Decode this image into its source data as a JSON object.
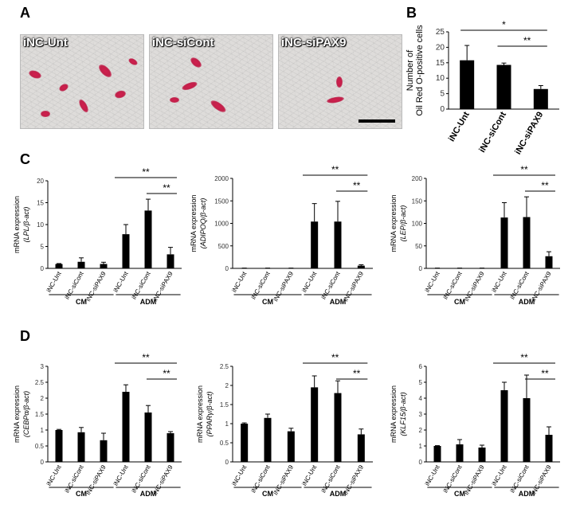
{
  "panel_labels": [
    "A",
    "B",
    "C",
    "D"
  ],
  "micrographs": [
    {
      "label": "iNC-Unt"
    },
    {
      "label": "iNC-siCont"
    },
    {
      "label": "iNC-siPAX9"
    }
  ],
  "chart_data": [
    {
      "id": "B",
      "type": "bar",
      "categories": [
        "iNC-Unt",
        "iNC-siCont",
        "iNC-siPAX9"
      ],
      "values": [
        15.8,
        14.3,
        6.5
      ],
      "errors": [
        4.8,
        0.6,
        1.1
      ],
      "ylabel_lines": [
        "Number of",
        "Oil Red O-positive cells"
      ],
      "ylim": [
        0,
        25
      ],
      "yticks": [
        0,
        5,
        10,
        15,
        20,
        25
      ],
      "ytick_labels": [
        "0",
        "5",
        "10",
        "15",
        "20",
        "25"
      ],
      "sig": [
        {
          "label": "*",
          "from": 0,
          "to": 2
        },
        {
          "label": "**",
          "from": 1,
          "to": 2
        }
      ],
      "groups": []
    },
    {
      "id": "C1",
      "type": "bar",
      "categories": [
        "iNC-Unt",
        "iNC-siCont",
        "iNC-siPAX9",
        "iNC-Unt",
        "iNC-siCont",
        "iNC-siPAX9"
      ],
      "values": [
        1.0,
        1.5,
        1.0,
        7.8,
        13.2,
        3.2
      ],
      "errors": [
        0.1,
        0.9,
        0.4,
        2.2,
        2.6,
        1.6
      ],
      "ylabel_lines": [
        "mRNA expression",
        "(LPL/β-act)"
      ],
      "ylim": [
        0,
        20
      ],
      "yticks": [
        0,
        5,
        10,
        15,
        20
      ],
      "ytick_labels": [
        "0",
        "5",
        "10",
        "15",
        "20"
      ],
      "sig": [
        {
          "label": "**",
          "from": 3,
          "to": 5
        },
        {
          "label": "**",
          "from": 4,
          "to": 5
        }
      ],
      "groups": [
        {
          "label": "CM",
          "from": 0,
          "to": 2
        },
        {
          "label": "ADM",
          "from": 3,
          "to": 5
        }
      ]
    },
    {
      "id": "C2",
      "type": "bar",
      "categories": [
        "iNC-Unt",
        "iNC-siCont",
        "iNC-siPAX9",
        "iNC-Unt",
        "iNC-siCont",
        "iNC-siPAX9"
      ],
      "values": [
        5,
        5,
        5,
        1040,
        1040,
        60
      ],
      "errors": [
        2,
        2,
        2,
        400,
        450,
        20
      ],
      "ylabel_lines": [
        "mRNA expression",
        "(ADIPOQ/β-act)"
      ],
      "ylim": [
        0,
        2000
      ],
      "yticks": [
        0,
        500,
        1000,
        1500,
        2000
      ],
      "ytick_labels": [
        "0",
        "500",
        "1000",
        "1500",
        "2000"
      ],
      "sig": [
        {
          "label": "**",
          "from": 3,
          "to": 5
        },
        {
          "label": "**",
          "from": 4,
          "to": 5
        }
      ],
      "groups": [
        {
          "label": "CM",
          "from": 0,
          "to": 2
        },
        {
          "label": "ADM",
          "from": 3,
          "to": 5
        }
      ]
    },
    {
      "id": "C3",
      "type": "bar",
      "categories": [
        "iNC-Unt",
        "iNC-siCont",
        "iNC-siPAX9",
        "iNC-Unt",
        "iNC-siCont",
        "iNC-siPAX9"
      ],
      "values": [
        0.5,
        0.5,
        0.5,
        113,
        114,
        27
      ],
      "errors": [
        0.2,
        0.2,
        0.2,
        33,
        45,
        10
      ],
      "ylabel_lines": [
        "mRNA expression",
        "(LEP/β-act)"
      ],
      "ylim": [
        0,
        200
      ],
      "yticks": [
        0,
        50,
        100,
        150,
        200
      ],
      "ytick_labels": [
        "0",
        "50",
        "100",
        "150",
        "200"
      ],
      "sig": [
        {
          "label": "**",
          "from": 3,
          "to": 5
        },
        {
          "label": "**",
          "from": 4,
          "to": 5
        }
      ],
      "groups": [
        {
          "label": "CM",
          "from": 0,
          "to": 2
        },
        {
          "label": "ADM",
          "from": 3,
          "to": 5
        }
      ]
    },
    {
      "id": "D1",
      "type": "bar",
      "categories": [
        "iNC-Unt",
        "iNC-siCont",
        "iNC-siPAX9",
        "iNC-Unt",
        "iNC-siCont",
        "iNC-siPAX9"
      ],
      "values": [
        1.0,
        0.93,
        0.68,
        2.2,
        1.55,
        0.9
      ],
      "errors": [
        0.02,
        0.15,
        0.22,
        0.22,
        0.22,
        0.05
      ],
      "ylabel_lines": [
        "mRNA expression",
        "(CEBPα/β-act)"
      ],
      "ylim": [
        0,
        3
      ],
      "yticks": [
        0,
        0.5,
        1,
        1.5,
        2,
        2.5,
        3
      ],
      "ytick_labels": [
        "0",
        "0.5",
        "1",
        "1.5",
        "2",
        "2.5",
        "3"
      ],
      "sig": [
        {
          "label": "**",
          "from": 3,
          "to": 5
        },
        {
          "label": "**",
          "from": 4,
          "to": 5
        }
      ],
      "groups": [
        {
          "label": "CM",
          "from": 0,
          "to": 2
        },
        {
          "label": "ADM",
          "from": 3,
          "to": 5
        }
      ]
    },
    {
      "id": "D2",
      "type": "bar",
      "categories": [
        "iNC-Unt",
        "iNC-siCont",
        "iNC-siPAX9",
        "iNC-Unt",
        "iNC-siCont",
        "iNC-siPAX9"
      ],
      "values": [
        1.0,
        1.15,
        0.8,
        1.95,
        1.8,
        0.72
      ],
      "errors": [
        0.02,
        0.1,
        0.08,
        0.3,
        0.32,
        0.14
      ],
      "ylabel_lines": [
        "mRNA expression",
        "(PPARγ/β-act)"
      ],
      "ylim": [
        0,
        2.5
      ],
      "yticks": [
        0,
        0.5,
        1,
        1.5,
        2,
        2.5
      ],
      "ytick_labels": [
        "0",
        "0.5",
        "1",
        "1.5",
        "2",
        "2.5"
      ],
      "sig": [
        {
          "label": "**",
          "from": 3,
          "to": 5
        },
        {
          "label": "**",
          "from": 4,
          "to": 5
        }
      ],
      "groups": [
        {
          "label": "CM",
          "from": 0,
          "to": 2
        },
        {
          "label": "ADM",
          "from": 3,
          "to": 5
        }
      ]
    },
    {
      "id": "D3",
      "type": "bar",
      "categories": [
        "iNC-Unt",
        "iNC-siCont",
        "iNC-siPAX9",
        "iNC-Unt",
        "iNC-siCont",
        "iNC-siPAX9"
      ],
      "values": [
        1.0,
        1.1,
        0.9,
        4.5,
        4.0,
        1.7
      ],
      "errors": [
        0.02,
        0.3,
        0.15,
        0.5,
        1.45,
        0.5
      ],
      "ylabel_lines": [
        "mRNA expression",
        "(KLF15/β-act)"
      ],
      "ylim": [
        0,
        6
      ],
      "yticks": [
        0,
        1,
        2,
        3,
        4,
        5,
        6
      ],
      "ytick_labels": [
        "0",
        "1",
        "2",
        "3",
        "4",
        "5",
        "6"
      ],
      "sig": [
        {
          "label": "**",
          "from": 3,
          "to": 5
        },
        {
          "label": "**",
          "from": 4,
          "to": 5
        }
      ],
      "groups": [
        {
          "label": "CM",
          "from": 0,
          "to": 2
        },
        {
          "label": "ADM",
          "from": 3,
          "to": 5
        }
      ]
    }
  ]
}
